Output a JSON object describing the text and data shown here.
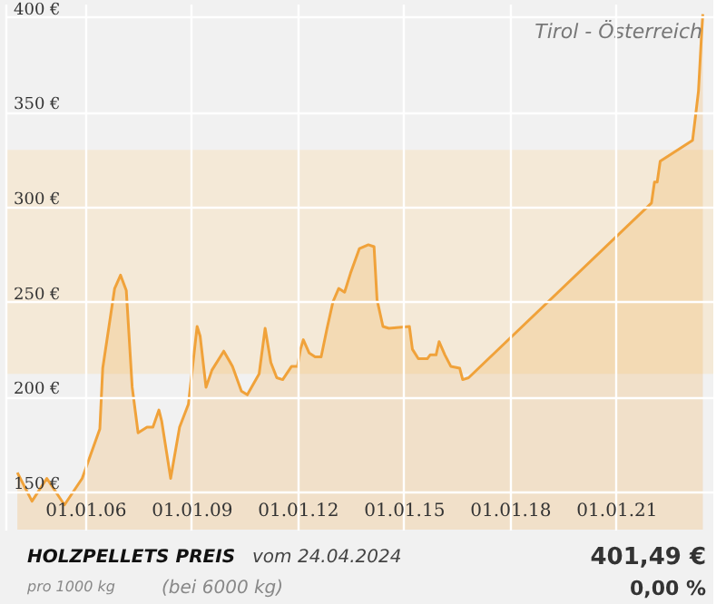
{
  "chart_data": {
    "type": "area",
    "title": "HOLZPELLETS PREIS",
    "annotations": [
      "Tirol - Österreich",
      "vom 24.04.2024",
      "pro 1000 kg",
      "(bei 6000 kg)",
      "401,49 €",
      "0,00 %"
    ],
    "x": [
      "2004-02",
      "2004-07",
      "2004-12",
      "2005-06",
      "2005-12",
      "2006-06",
      "2006-07",
      "2006-11",
      "2007-01",
      "2007-03",
      "2007-05",
      "2007-07",
      "2007-10",
      "2007-12",
      "2008-02",
      "2008-03",
      "2008-06",
      "2008-09",
      "2008-12",
      "2009-03",
      "2009-04",
      "2009-06",
      "2009-08",
      "2009-12",
      "2010-03",
      "2010-06",
      "2010-08",
      "2010-12",
      "2011-02",
      "2011-04",
      "2011-06",
      "2011-08",
      "2011-11",
      "2012-01",
      "2012-02",
      "2012-03",
      "2012-05",
      "2012-07",
      "2012-09",
      "2012-11",
      "2013-01",
      "2013-03",
      "2013-05",
      "2013-07",
      "2013-10",
      "2014-01",
      "2014-03",
      "2014-04",
      "2014-06",
      "2014-08",
      "2015-03",
      "2015-04",
      "2015-06",
      "2015-09",
      "2015-10",
      "2015-12",
      "2016-01",
      "2016-03",
      "2016-05",
      "2016-08",
      "2016-09",
      "2016-11",
      "2022-01",
      "2022-02",
      "2022-03",
      "2022-04",
      "2023-03",
      "2023-04",
      "2023-05",
      "2023-06-01",
      "2023-06-15"
    ],
    "series": [
      {
        "color": "#f0a23a",
        "values": [
          160,
          145,
          157,
          143,
          157,
          183,
          215,
          257,
          264,
          256,
          205,
          181,
          184,
          184,
          193,
          187,
          157,
          184,
          196,
          237,
          232,
          205,
          214,
          224,
          216,
          203,
          201,
          212,
          236,
          218,
          210,
          209,
          216,
          216,
          225,
          230,
          223,
          221,
          221,
          236,
          250,
          257,
          255,
          265,
          278,
          280,
          279,
          251,
          237,
          236,
          237,
          225,
          220,
          220,
          222,
          222,
          229,
          222,
          216,
          215,
          209,
          210,
          302,
          313,
          313,
          324,
          335,
          348,
          361,
          390,
          401.49
        ]
      }
    ],
    "xlim": [
      "2003-10",
      "2023-10"
    ],
    "ylim": [
      130,
      407
    ],
    "xticks": [
      {
        "value": "2006-01-01",
        "label": "01.01.06"
      },
      {
        "value": "2009-01-01",
        "label": "01.01.09"
      },
      {
        "value": "2012-01-01",
        "label": "01.01.12"
      },
      {
        "value": "2015-01-01",
        "label": "01.01.15"
      },
      {
        "value": "2018-01-01",
        "label": "01.01.18"
      },
      {
        "value": "2021-01-01",
        "label": "01.01.21"
      }
    ],
    "yticks": [
      {
        "value": 150,
        "label": "150 €"
      },
      {
        "value": 200,
        "label": "200 €"
      },
      {
        "value": 250,
        "label": "250 €"
      },
      {
        "value": 300,
        "label": "300 €"
      },
      {
        "value": 350,
        "label": "350 €"
      },
      {
        "value": 400,
        "label": "400 €"
      }
    ],
    "bands": [
      {
        "axis": "y",
        "from": 212,
        "to": 330,
        "color": "#f5e8d2"
      }
    ],
    "grid": true
  }
}
